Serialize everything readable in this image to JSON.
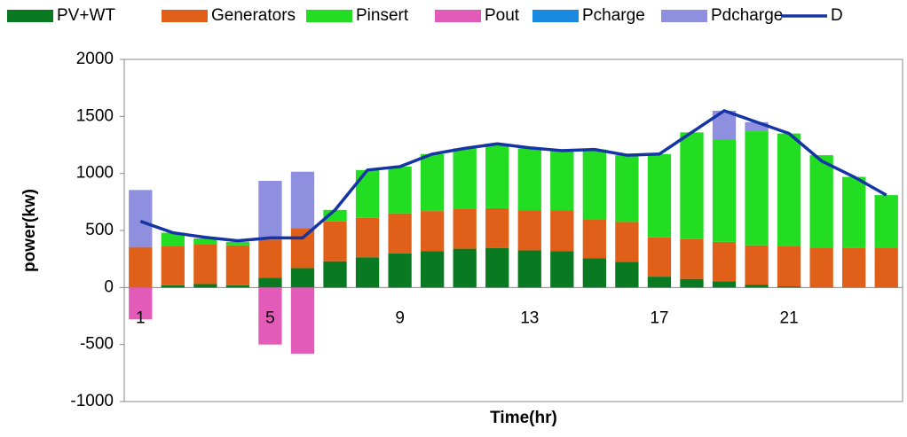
{
  "chart_data": {
    "type": "bar",
    "stacked": true,
    "xlabel": "Time(hr)",
    "ylabel": "power(kw)",
    "categories": [
      "1",
      null,
      null,
      null,
      "5",
      null,
      null,
      null,
      "9",
      null,
      null,
      null,
      "13",
      null,
      null,
      null,
      "17",
      null,
      null,
      null,
      "21",
      null,
      null,
      null
    ],
    "ylim": [
      -1000,
      2000
    ],
    "yticks": [
      -1000,
      -500,
      0,
      500,
      1000,
      1500,
      2000
    ],
    "series": [
      {
        "name": "PV+WT",
        "color": "#0a7a22",
        "values": [
          0,
          20,
          30,
          20,
          85,
          170,
          230,
          265,
          300,
          320,
          340,
          345,
          325,
          320,
          255,
          225,
          95,
          75,
          55,
          25,
          10,
          0,
          0,
          0
        ]
      },
      {
        "name": "Generators",
        "color": "#e0601a",
        "values": [
          355,
          345,
          350,
          350,
          335,
          350,
          350,
          345,
          350,
          350,
          350,
          350,
          350,
          355,
          345,
          350,
          345,
          350,
          345,
          345,
          350,
          350,
          345,
          350
        ]
      },
      {
        "name": "Pinsert",
        "color": "#22dd22",
        "values": [
          0,
          115,
          50,
          30,
          0,
          0,
          100,
          420,
          410,
          500,
          530,
          565,
          545,
          525,
          610,
          585,
          730,
          935,
          900,
          1000,
          990,
          810,
          625,
          460
        ]
      },
      {
        "name": "Pout",
        "color": "#e35bb9",
        "values": [
          -280,
          0,
          0,
          0,
          -500,
          -580,
          0,
          0,
          0,
          0,
          0,
          0,
          0,
          0,
          0,
          0,
          0,
          0,
          0,
          0,
          0,
          0,
          0,
          0
        ]
      },
      {
        "name": "Pcharge",
        "color": "#1a8ae0",
        "values": [
          0,
          0,
          0,
          0,
          0,
          0,
          0,
          0,
          0,
          0,
          0,
          0,
          0,
          0,
          0,
          0,
          0,
          0,
          0,
          0,
          0,
          0,
          0,
          0
        ]
      },
      {
        "name": "Pdcharge",
        "color": "#8f8fdf",
        "values": [
          500,
          0,
          0,
          0,
          515,
          495,
          0,
          0,
          0,
          0,
          0,
          0,
          0,
          0,
          0,
          0,
          0,
          0,
          250,
          80,
          0,
          0,
          0,
          0
        ]
      },
      {
        "name": "D",
        "type": "line",
        "color": "#1535a5",
        "values": [
          580,
          480,
          440,
          410,
          435,
          435,
          680,
          1030,
          1060,
          1170,
          1220,
          1260,
          1225,
          1200,
          1210,
          1160,
          1170,
          1360,
          1550,
          1450,
          1350,
          1110,
          970,
          810
        ]
      }
    ]
  }
}
